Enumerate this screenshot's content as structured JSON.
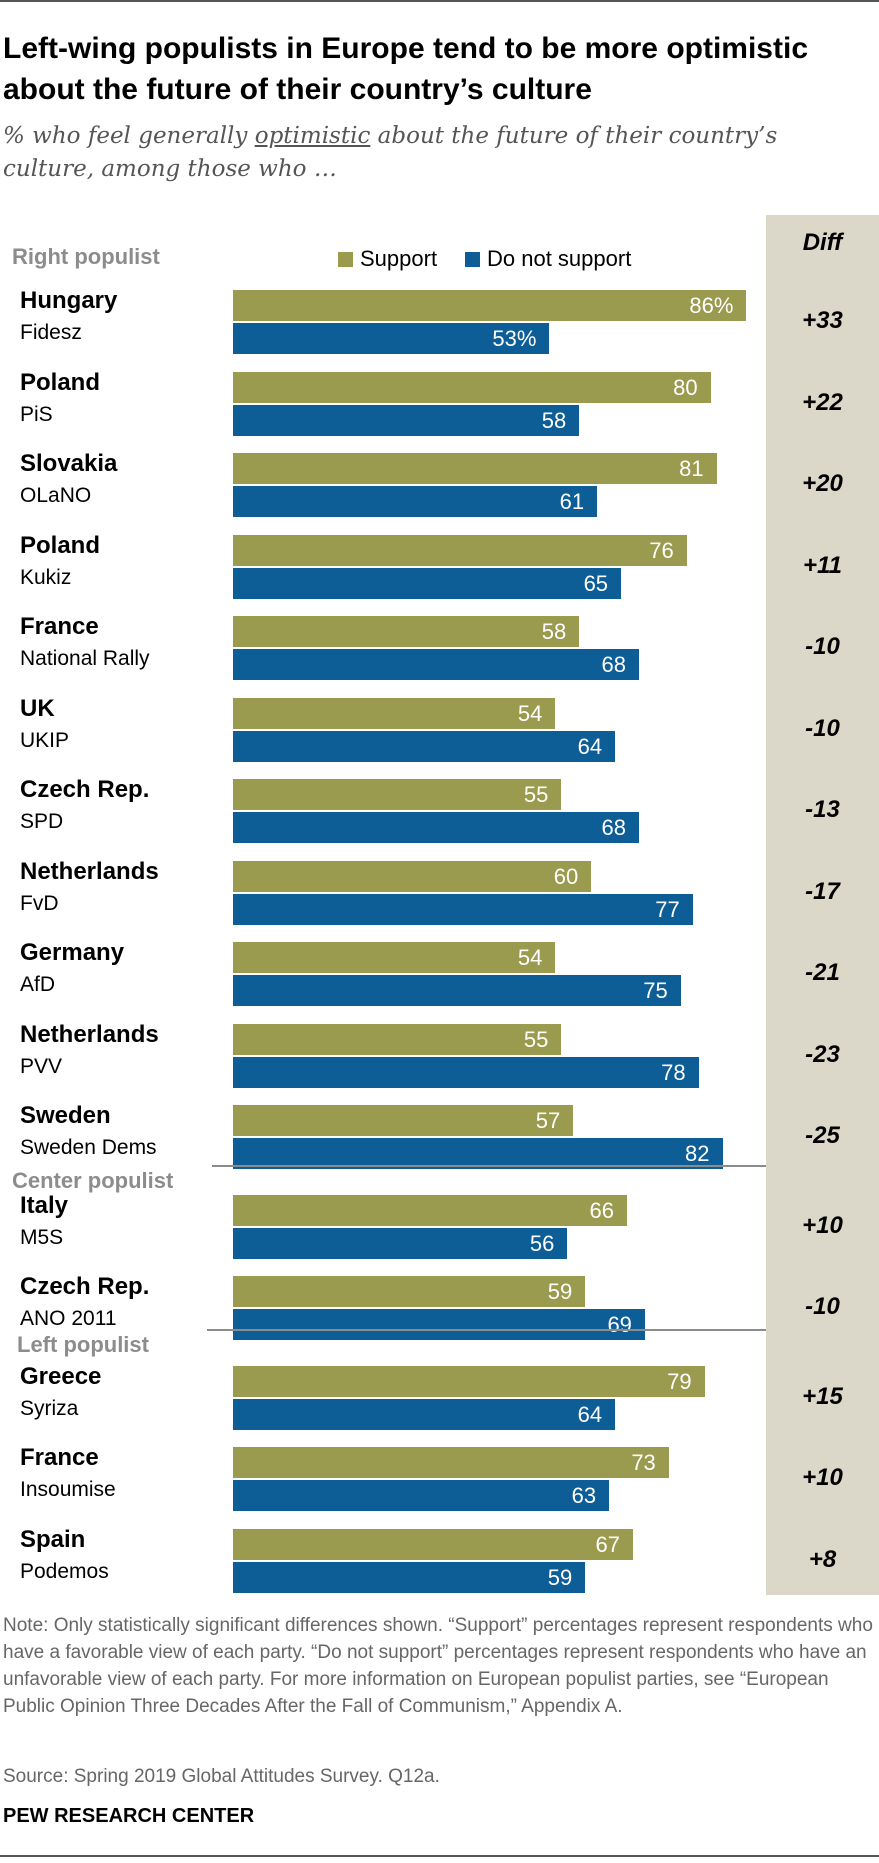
{
  "header": {
    "title": "Left-wing populists in Europe tend to be more optimistic about the future of their country’s culture",
    "subtitle_pre": "% who feel generally ",
    "subtitle_emph": "optimistic",
    "subtitle_post": " about the future of their country’s culture, among those who …"
  },
  "legend": {
    "support": "Support",
    "not_support": "Do not support"
  },
  "colors": {
    "support": "#9a9b4e",
    "not_support": "#0d5d96",
    "diff_band": "#dcd8c9",
    "group_label": "#8c8c8c"
  },
  "chart_data": {
    "type": "bar",
    "orientation": "horizontal",
    "title": "Left-wing populists in Europe tend to be more optimistic about the future of their country’s culture",
    "unit": "%",
    "diff_header": "Diff",
    "series": [
      {
        "name": "Support",
        "key": "support"
      },
      {
        "name": "Do not support",
        "key": "not_support"
      }
    ],
    "groups": [
      {
        "name": "Right populist",
        "rows": [
          {
            "country": "Hungary",
            "party": "Fidesz",
            "support": 86,
            "not_support": 53,
            "diff": "+33",
            "support_label": "86%",
            "not_support_label": "53%"
          },
          {
            "country": "Poland",
            "party": "PiS",
            "support": 80,
            "not_support": 58,
            "diff": "+22",
            "support_label": "80",
            "not_support_label": "58"
          },
          {
            "country": "Slovakia",
            "party": "OLaNO",
            "support": 81,
            "not_support": 61,
            "diff": "+20",
            "support_label": "81",
            "not_support_label": "61"
          },
          {
            "country": "Poland",
            "party": "Kukiz",
            "support": 76,
            "not_support": 65,
            "diff": "+11",
            "support_label": "76",
            "not_support_label": "65"
          },
          {
            "country": "France",
            "party": "National Rally",
            "support": 58,
            "not_support": 68,
            "diff": "-10",
            "support_label": "58",
            "not_support_label": "68"
          },
          {
            "country": "UK",
            "party": "UKIP",
            "support": 54,
            "not_support": 64,
            "diff": "-10",
            "support_label": "54",
            "not_support_label": "64"
          },
          {
            "country": "Czech Rep.",
            "party": "SPD",
            "support": 55,
            "not_support": 68,
            "diff": "-13",
            "support_label": "55",
            "not_support_label": "68"
          },
          {
            "country": "Netherlands",
            "party": "FvD",
            "support": 60,
            "not_support": 77,
            "diff": "-17",
            "support_label": "60",
            "not_support_label": "77"
          },
          {
            "country": "Germany",
            "party": "AfD",
            "support": 54,
            "not_support": 75,
            "diff": "-21",
            "support_label": "54",
            "not_support_label": "75"
          },
          {
            "country": "Netherlands",
            "party": "PVV",
            "support": 55,
            "not_support": 78,
            "diff": "-23",
            "support_label": "55",
            "not_support_label": "78"
          },
          {
            "country": "Sweden",
            "party": "Sweden Dems",
            "support": 57,
            "not_support": 82,
            "diff": "-25",
            "support_label": "57",
            "not_support_label": "82"
          }
        ]
      },
      {
        "name": "Center populist",
        "rows": [
          {
            "country": "Italy",
            "party": "M5S",
            "support": 66,
            "not_support": 56,
            "diff": "+10",
            "support_label": "66",
            "not_support_label": "56"
          },
          {
            "country": "Czech Rep.",
            "party": "ANO 2011",
            "support": 59,
            "not_support": 69,
            "diff": "-10",
            "support_label": "59",
            "not_support_label": "69"
          }
        ]
      },
      {
        "name": "Left populist",
        "rows": [
          {
            "country": "Greece",
            "party": "Syriza",
            "support": 79,
            "not_support": 64,
            "diff": "+15",
            "support_label": "79",
            "not_support_label": "64"
          },
          {
            "country": "France",
            "party": "Insoumise",
            "support": 73,
            "not_support": 63,
            "diff": "+10",
            "support_label": "73",
            "not_support_label": "63"
          },
          {
            "country": "Spain",
            "party": "Podemos",
            "support": 67,
            "not_support": 59,
            "diff": "+8",
            "support_label": "67",
            "not_support_label": "59"
          }
        ]
      }
    ]
  },
  "footer": {
    "note": "Note: Only statistically significant differences shown. “Support” percentages represent respondents who have a favorable view of each party. “Do not support” percentages represent respondents who have an unfavorable view of each party. For more information on European populist parties, see “European Public Opinion Three Decades After the Fall of Communism,” Appendix A.",
    "source": "Source:  Spring 2019 Global Attitudes Survey. Q12a.",
    "org": "PEW RESEARCH CENTER"
  }
}
